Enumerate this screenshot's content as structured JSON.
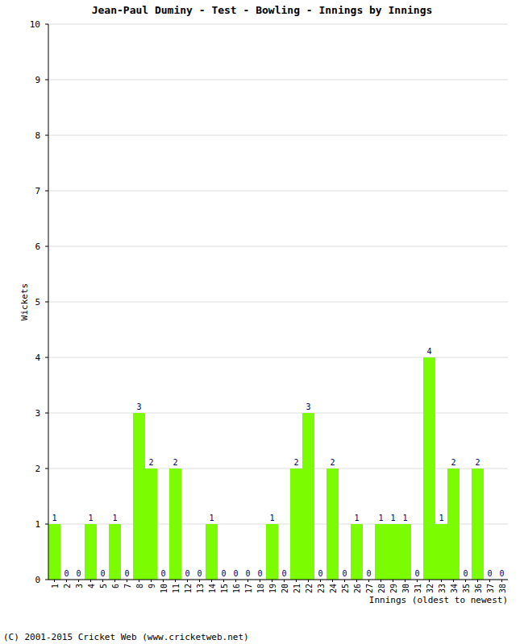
{
  "chart_data": {
    "type": "bar",
    "title": "Jean-Paul Duminy - Test - Bowling - Innings by Innings",
    "x_label": "Innings (oldest to newest)",
    "y_label": "Wickets",
    "footer": "(C) 2001-2015 Cricket Web (www.cricketweb.net)",
    "categories": [
      "1",
      "2",
      "3",
      "4",
      "5",
      "6",
      "7",
      "8",
      "9",
      "10",
      "11",
      "12",
      "13",
      "14",
      "15",
      "16",
      "17",
      "18",
      "19",
      "20",
      "21",
      "22",
      "23",
      "24",
      "25",
      "26",
      "27",
      "28",
      "29",
      "30",
      "31",
      "32",
      "33",
      "34",
      "35",
      "36",
      "37",
      "38"
    ],
    "values": [
      1,
      0,
      0,
      1,
      0,
      1,
      0,
      3,
      2,
      0,
      2,
      0,
      0,
      1,
      0,
      0,
      0,
      0,
      1,
      0,
      2,
      3,
      0,
      2,
      0,
      1,
      0,
      1,
      1,
      1,
      0,
      4,
      1,
      2,
      0,
      2,
      0,
      0
    ],
    "color": "#7cfc00",
    "ylim": [
      0,
      10
    ],
    "yticks": [
      0,
      1,
      2,
      3,
      4,
      5,
      6,
      7,
      8,
      9,
      10
    ],
    "grid": true,
    "data_labels": true
  }
}
